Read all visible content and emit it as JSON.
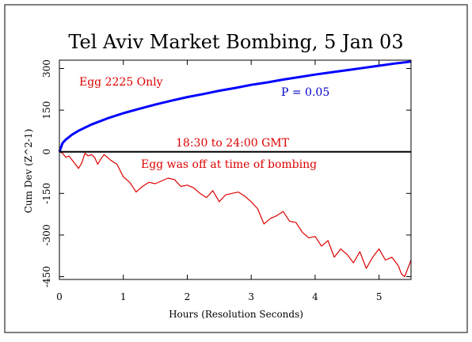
{
  "chart_data": {
    "type": "line",
    "title": "Tel Aviv Market Bombing, 5 Jan 03",
    "xlabel": "Hours (Resolution Seconds)",
    "ylabel": "Cum Dev (Z^2-1)",
    "xlim": [
      0,
      5.5
    ],
    "ylim": [
      -460,
      330
    ],
    "x_ticks": [
      0,
      1,
      2,
      3,
      4,
      5
    ],
    "y_ticks": [
      -450,
      -300,
      -150,
      0,
      150,
      300
    ],
    "x_tick_labels": [
      "0",
      "1",
      "2",
      "3",
      "4",
      "5"
    ],
    "y_tick_labels": [
      "-450",
      "-300",
      "-150",
      "0",
      "150",
      "300"
    ],
    "grid": false,
    "zero_line": true,
    "annotations": {
      "egg_only": "Egg 2225 Only",
      "p_value": "P = 0.05",
      "time_window": "18:30 to 24:00 GMT",
      "egg_off": "Egg was off at time of bombing"
    },
    "series": [
      {
        "name": "",
        "role": "p-0.05-envelope",
        "color": "#0000ff",
        "x": [
          0,
          0.05,
          0.1,
          0.2,
          0.3,
          0.5,
          0.75,
          1,
          1.25,
          1.5,
          1.75,
          2,
          2.25,
          2.5,
          2.75,
          3,
          3.25,
          3.5,
          3.75,
          4,
          4.25,
          4.5,
          4.75,
          5,
          5.25,
          5.5
        ],
        "values": [
          0,
          31,
          44,
          62,
          76,
          98,
          120,
          139,
          155,
          170,
          184,
          197,
          208,
          220,
          230,
          241,
          250,
          260,
          269,
          278,
          286,
          294,
          302,
          310,
          318,
          325
        ]
      },
      {
        "name": "",
        "role": "cumulative-deviation",
        "color": "#dd0000",
        "x": [
          0,
          0.05,
          0.1,
          0.15,
          0.2,
          0.25,
          0.3,
          0.35,
          0.4,
          0.45,
          0.5,
          0.55,
          0.6,
          0.65,
          0.7,
          0.8,
          0.9,
          1.0,
          1.1,
          1.2,
          1.3,
          1.4,
          1.5,
          1.6,
          1.7,
          1.8,
          1.9,
          2.0,
          2.1,
          2.2,
          2.3,
          2.4,
          2.5,
          2.6,
          2.7,
          2.8,
          2.9,
          3.0,
          3.1,
          3.2,
          3.3,
          3.4,
          3.5,
          3.6,
          3.7,
          3.8,
          3.9,
          4.0,
          4.1,
          4.2,
          4.3,
          4.4,
          4.5,
          4.6,
          4.7,
          4.8,
          4.9,
          5.0,
          5.1,
          5.2,
          5.3,
          5.35,
          5.4,
          5.45,
          5.5
        ],
        "values": [
          0,
          -5,
          -20,
          -15,
          -30,
          -45,
          -60,
          -40,
          -5,
          -15,
          -10,
          -20,
          -45,
          -25,
          -10,
          -30,
          -45,
          -90,
          -110,
          -145,
          -125,
          -110,
          -115,
          -105,
          -95,
          -100,
          -125,
          -120,
          -130,
          -150,
          -165,
          -140,
          -180,
          -155,
          -150,
          -145,
          -160,
          -180,
          -205,
          -260,
          -240,
          -230,
          -215,
          -250,
          -255,
          -290,
          -310,
          -305,
          -340,
          -320,
          -380,
          -350,
          -370,
          -400,
          -360,
          -420,
          -380,
          -350,
          -390,
          -380,
          -410,
          -440,
          -450,
          -420,
          -390
        ]
      }
    ]
  }
}
